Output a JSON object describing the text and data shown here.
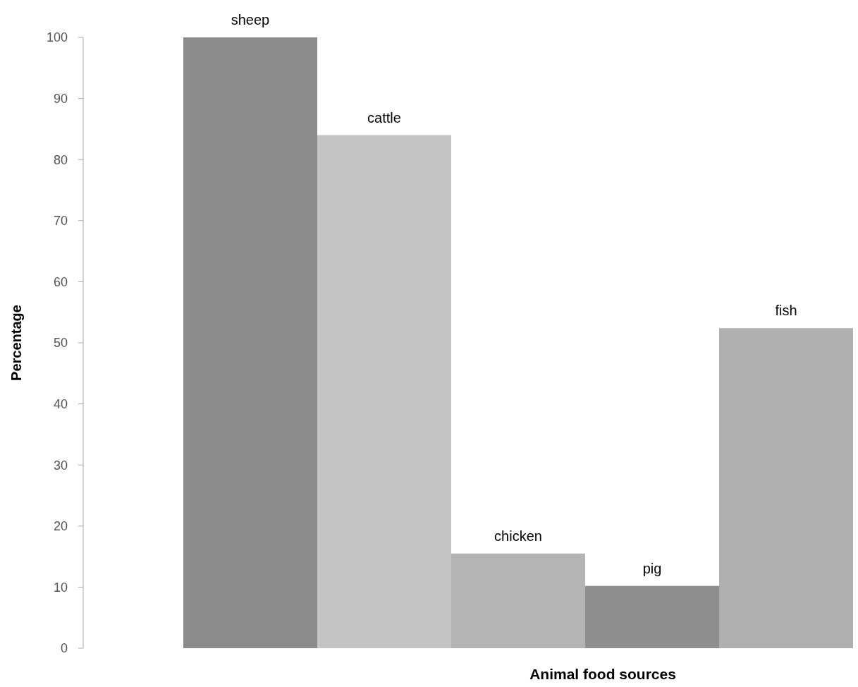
{
  "chart_data": {
    "type": "bar",
    "xlabel": "Animal food sources",
    "ylabel": "Percentage",
    "categories": [
      "sheep",
      "cattle",
      "chicken",
      "pig",
      "fish"
    ],
    "values": [
      100,
      84,
      15.5,
      10.2,
      52.4
    ],
    "colors": [
      "#8c8c8c",
      "#c4c4c4",
      "#b4b4b4",
      "#8e8e8e",
      "#b0b0b0"
    ],
    "ylim": [
      0,
      100
    ],
    "yticks": [
      0,
      10,
      20,
      30,
      40,
      50,
      60,
      70,
      80,
      90,
      100
    ],
    "grid": false
  }
}
